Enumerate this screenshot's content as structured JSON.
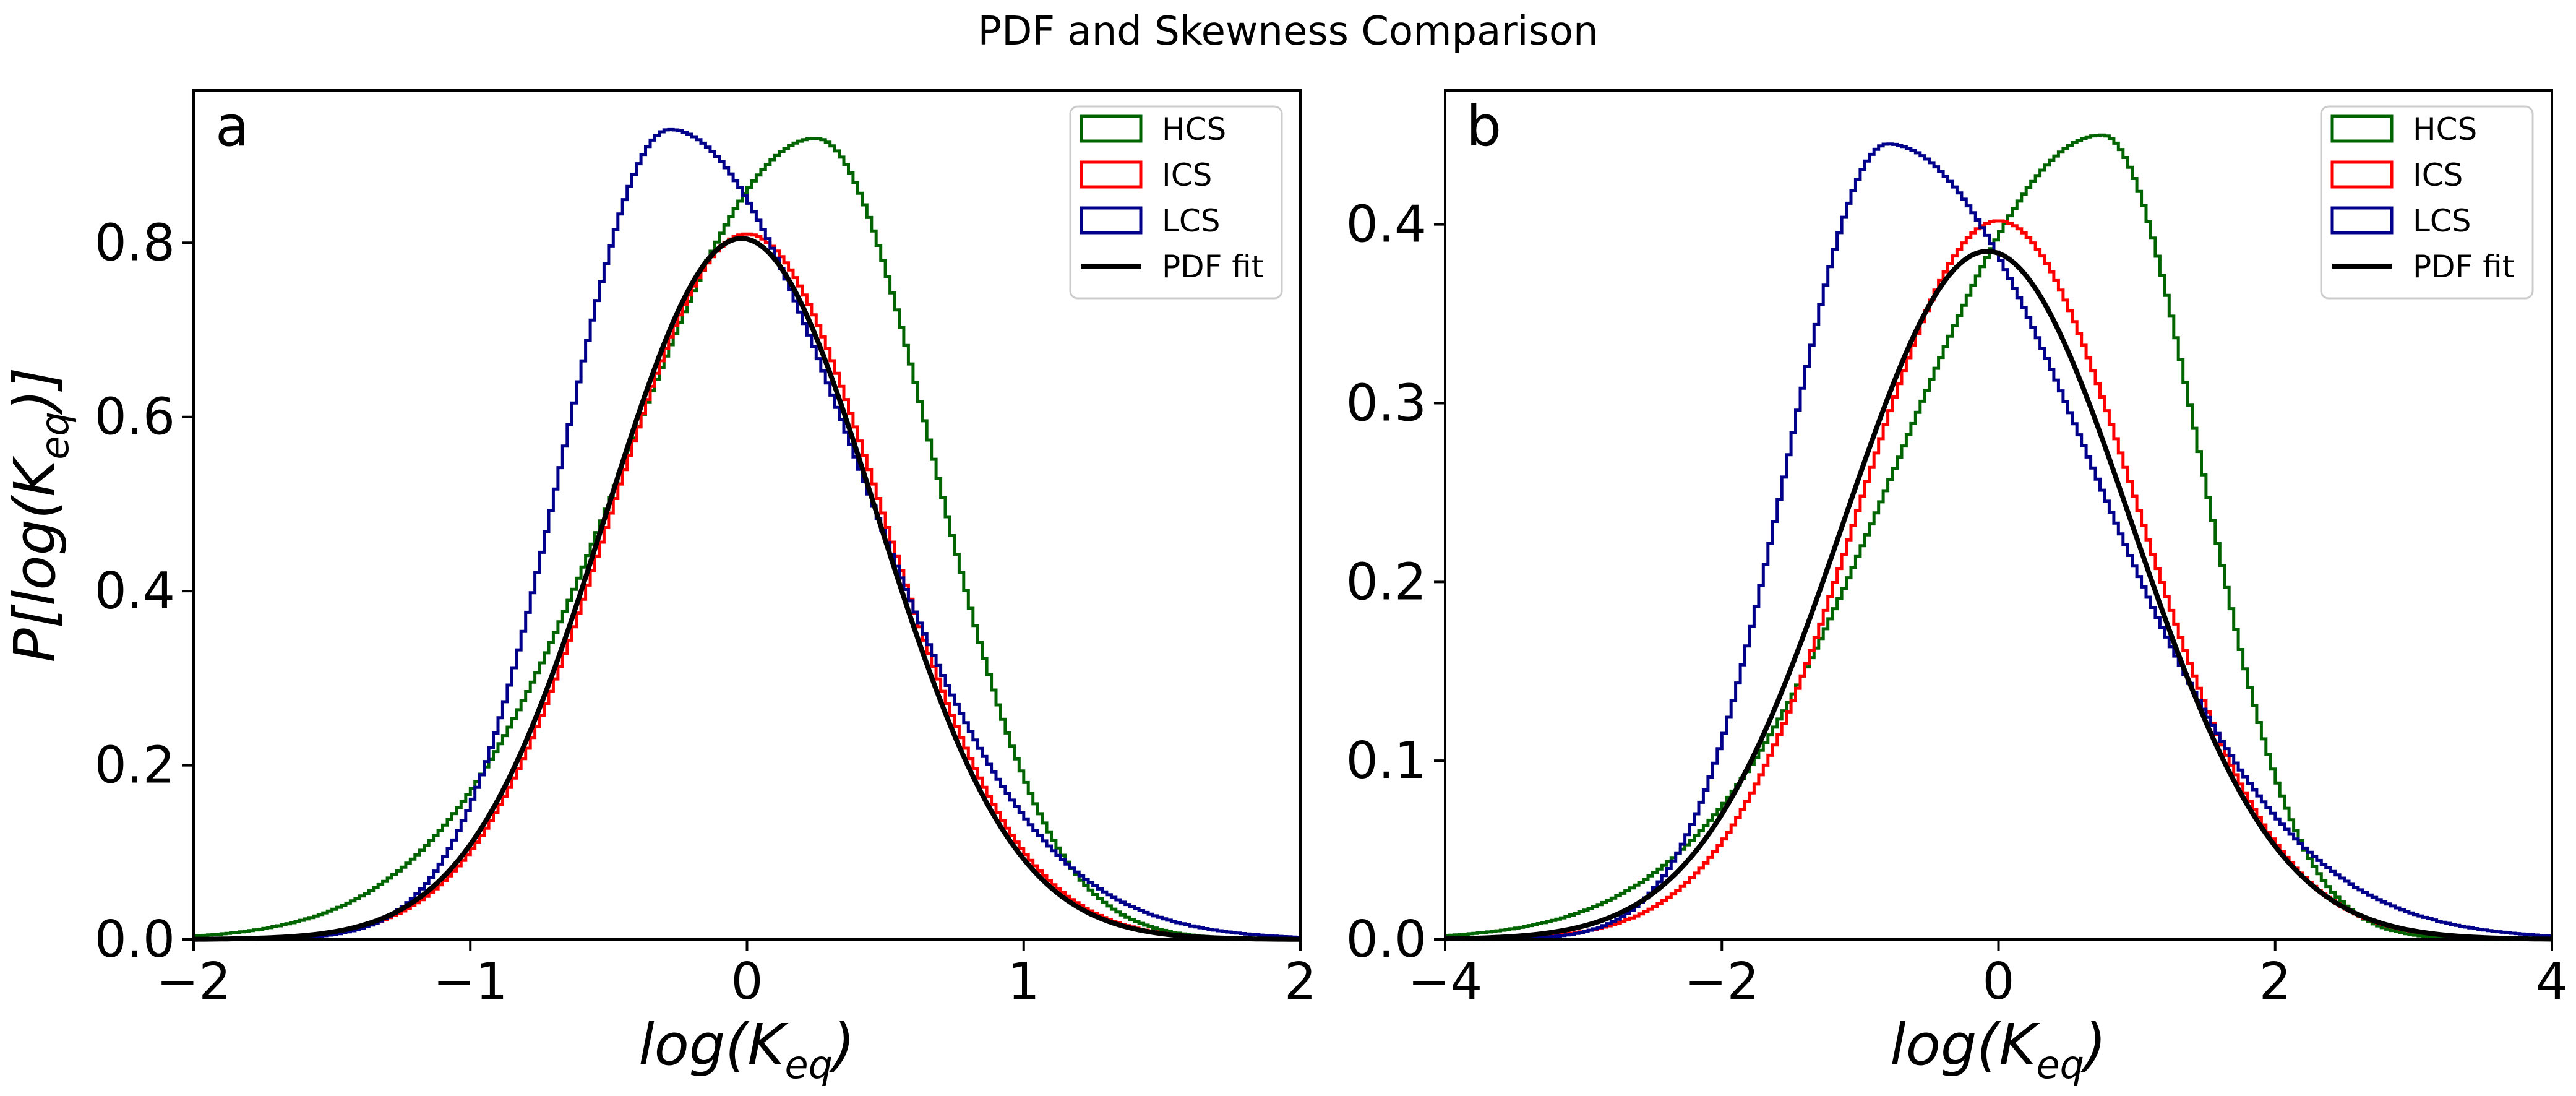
{
  "figure": {
    "title": "PDF and Skewness Comparison"
  },
  "colors": {
    "HCS": "#006400",
    "ICS": "#ff0000",
    "LCS": "#00008b",
    "fit": "#000000"
  },
  "chart_data": [
    {
      "type": "line",
      "panel_label": "a",
      "xlabel_base": "log(K",
      "xlabel_sub": "eq",
      "xlabel_close": ")",
      "ylabel_base": "P[log(K",
      "ylabel_sub": "eq",
      "ylabel_close": ")]",
      "xlim": [
        -2,
        2
      ],
      "ylim": [
        0,
        0.975
      ],
      "xticks": [
        -2,
        -1,
        0,
        1,
        2
      ],
      "xtick_labels": [
        "−2",
        "−1",
        "0",
        "1",
        "2"
      ],
      "yticks": [
        0.0,
        0.2,
        0.4,
        0.6,
        0.8
      ],
      "ytick_labels": [
        "0.0",
        "0.2",
        "0.4",
        "0.6",
        "0.8"
      ],
      "grid": false,
      "legend_position": "top-right",
      "series": [
        {
          "name": "HCS",
          "key": "HCS",
          "style": "step",
          "params": {
            "type": "skew",
            "mode": 0.25,
            "sl": 0.68,
            "sr": 0.42,
            "amp": 0.92
          },
          "x_range": [
            -2,
            2,
            240
          ]
        },
        {
          "name": "ICS",
          "key": "ICS",
          "style": "step",
          "params": {
            "type": "normal",
            "mu": 0.0,
            "sigma": 0.49,
            "amp": 0.81
          },
          "x_range": [
            -2,
            2,
            240
          ]
        },
        {
          "name": "LCS",
          "key": "LCS",
          "style": "step",
          "params": {
            "type": "skew",
            "mode": -0.28,
            "sl": 0.38,
            "sr": 0.66,
            "amp": 0.93
          },
          "x_range": [
            -2,
            2,
            240
          ]
        },
        {
          "name": "PDF fit",
          "key": "fit",
          "style": "line",
          "params": {
            "type": "normal",
            "mu": -0.02,
            "sigma": 0.49,
            "amp": 0.805
          },
          "x_range": [
            -2,
            2,
            200
          ]
        }
      ]
    },
    {
      "type": "line",
      "panel_label": "b",
      "xlabel_base": "log(K",
      "xlabel_sub": "eq",
      "xlabel_close": ")",
      "xlim": [
        -4,
        4
      ],
      "ylim": [
        0,
        0.475
      ],
      "xticks": [
        -4,
        -2,
        0,
        2,
        4
      ],
      "xtick_labels": [
        "−4",
        "−2",
        "0",
        "2",
        "4"
      ],
      "yticks": [
        0.0,
        0.1,
        0.2,
        0.3,
        0.4
      ],
      "ytick_labels": [
        "0.0",
        "0.1",
        "0.2",
        "0.3",
        "0.4"
      ],
      "grid": false,
      "legend_position": "top-right",
      "series": [
        {
          "name": "HCS",
          "key": "HCS",
          "style": "step",
          "params": {
            "type": "skew",
            "mode": 0.75,
            "sl": 1.45,
            "sr": 0.7,
            "amp": 0.45
          },
          "x_range": [
            -4,
            4,
            240
          ]
        },
        {
          "name": "ICS",
          "key": "ICS",
          "style": "step",
          "params": {
            "type": "normal",
            "mu": 0.0,
            "sigma": 1.0,
            "amp": 0.402
          },
          "x_range": [
            -4,
            4,
            240
          ]
        },
        {
          "name": "LCS",
          "key": "LCS",
          "style": "step",
          "params": {
            "type": "skew",
            "mode": -0.8,
            "sl": 0.72,
            "sr": 1.45,
            "amp": 0.445
          },
          "x_range": [
            -4,
            4,
            240
          ]
        },
        {
          "name": "PDF fit",
          "key": "fit",
          "style": "line",
          "params": {
            "type": "normal",
            "mu": -0.08,
            "sigma": 1.04,
            "amp": 0.385
          },
          "x_range": [
            -4,
            4,
            200
          ]
        }
      ]
    }
  ]
}
